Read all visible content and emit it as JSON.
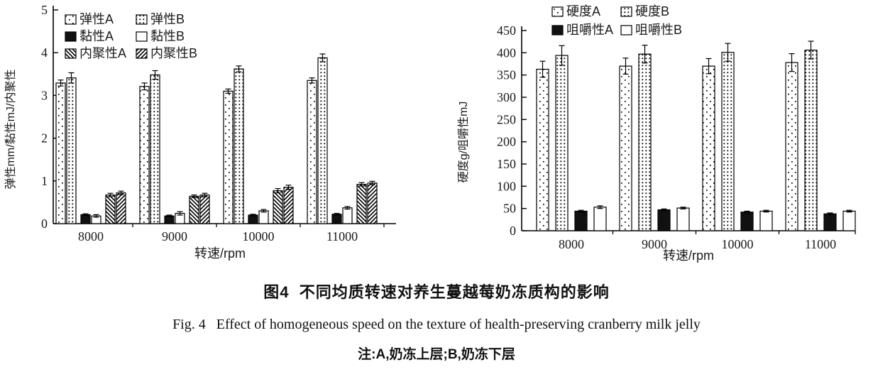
{
  "figure": {
    "caption_zh": "图4  不同均质转速对养生蔓越莓奶冻质构的影响",
    "caption_en": "Fig. 4   Effect of homogeneous speed on the texture of health-preserving cranberry milk jelly",
    "note": "注:A,奶冻上层;B,奶冻下层"
  },
  "chart_data": [
    {
      "type": "bar",
      "title": "",
      "xlabel": "转速/rpm",
      "ylabel": "弹性mm/黏性mJ/内聚性",
      "ylim": [
        0,
        5
      ],
      "ytick_step": 1,
      "grid": false,
      "legend_position": "top-inside-left",
      "categories": [
        "8000",
        "9000",
        "10000",
        "11000"
      ],
      "series": [
        {
          "name": "弹性A",
          "pattern": "dots-sparse",
          "values": [
            3.29,
            3.21,
            3.1,
            3.35
          ],
          "errors": [
            0.07,
            0.08,
            0.05,
            0.06
          ]
        },
        {
          "name": "弹性B",
          "pattern": "dots-dense",
          "values": [
            3.41,
            3.48,
            3.62,
            3.88
          ],
          "errors": [
            0.12,
            0.1,
            0.07,
            0.09
          ]
        },
        {
          "name": "黏性A",
          "pattern": "solid-black",
          "values": [
            0.21,
            0.18,
            0.2,
            0.22
          ],
          "errors": [
            0.02,
            0.02,
            0.02,
            0.02
          ]
        },
        {
          "name": "黏性B",
          "pattern": "white",
          "values": [
            0.18,
            0.24,
            0.3,
            0.37
          ],
          "errors": [
            0.03,
            0.04,
            0.03,
            0.03
          ]
        },
        {
          "name": "内聚性A",
          "pattern": "hatch-back",
          "values": [
            0.67,
            0.64,
            0.77,
            0.92
          ],
          "errors": [
            0.04,
            0.03,
            0.05,
            0.04
          ]
        },
        {
          "name": "内聚性B",
          "pattern": "hatch-fwd",
          "values": [
            0.72,
            0.67,
            0.85,
            0.95
          ],
          "errors": [
            0.04,
            0.04,
            0.05,
            0.04
          ]
        }
      ]
    },
    {
      "type": "bar",
      "title": "",
      "xlabel": "转速/rpm",
      "ylabel": "硬度g/咀嚼性mJ",
      "ylim": [
        0,
        450
      ],
      "ytick_step": 50,
      "grid": false,
      "legend_position": "top-inside-center",
      "categories": [
        "8000",
        "9000",
        "10000",
        "11000"
      ],
      "series": [
        {
          "name": "硬度A",
          "pattern": "dots-sparse",
          "values": [
            363,
            370,
            370,
            378
          ],
          "errors": [
            18,
            18,
            17,
            20
          ]
        },
        {
          "name": "硬度B",
          "pattern": "dots-dense",
          "values": [
            394,
            397,
            401,
            406
          ],
          "errors": [
            22,
            20,
            20,
            20
          ]
        },
        {
          "name": "咀嚼性A",
          "pattern": "solid-black",
          "values": [
            44,
            47,
            42,
            38
          ],
          "errors": [
            2,
            2,
            2,
            2
          ]
        },
        {
          "name": "咀嚼性B",
          "pattern": "white",
          "values": [
            53,
            51,
            44,
            44
          ],
          "errors": [
            3,
            2,
            2,
            2
          ]
        }
      ]
    }
  ]
}
